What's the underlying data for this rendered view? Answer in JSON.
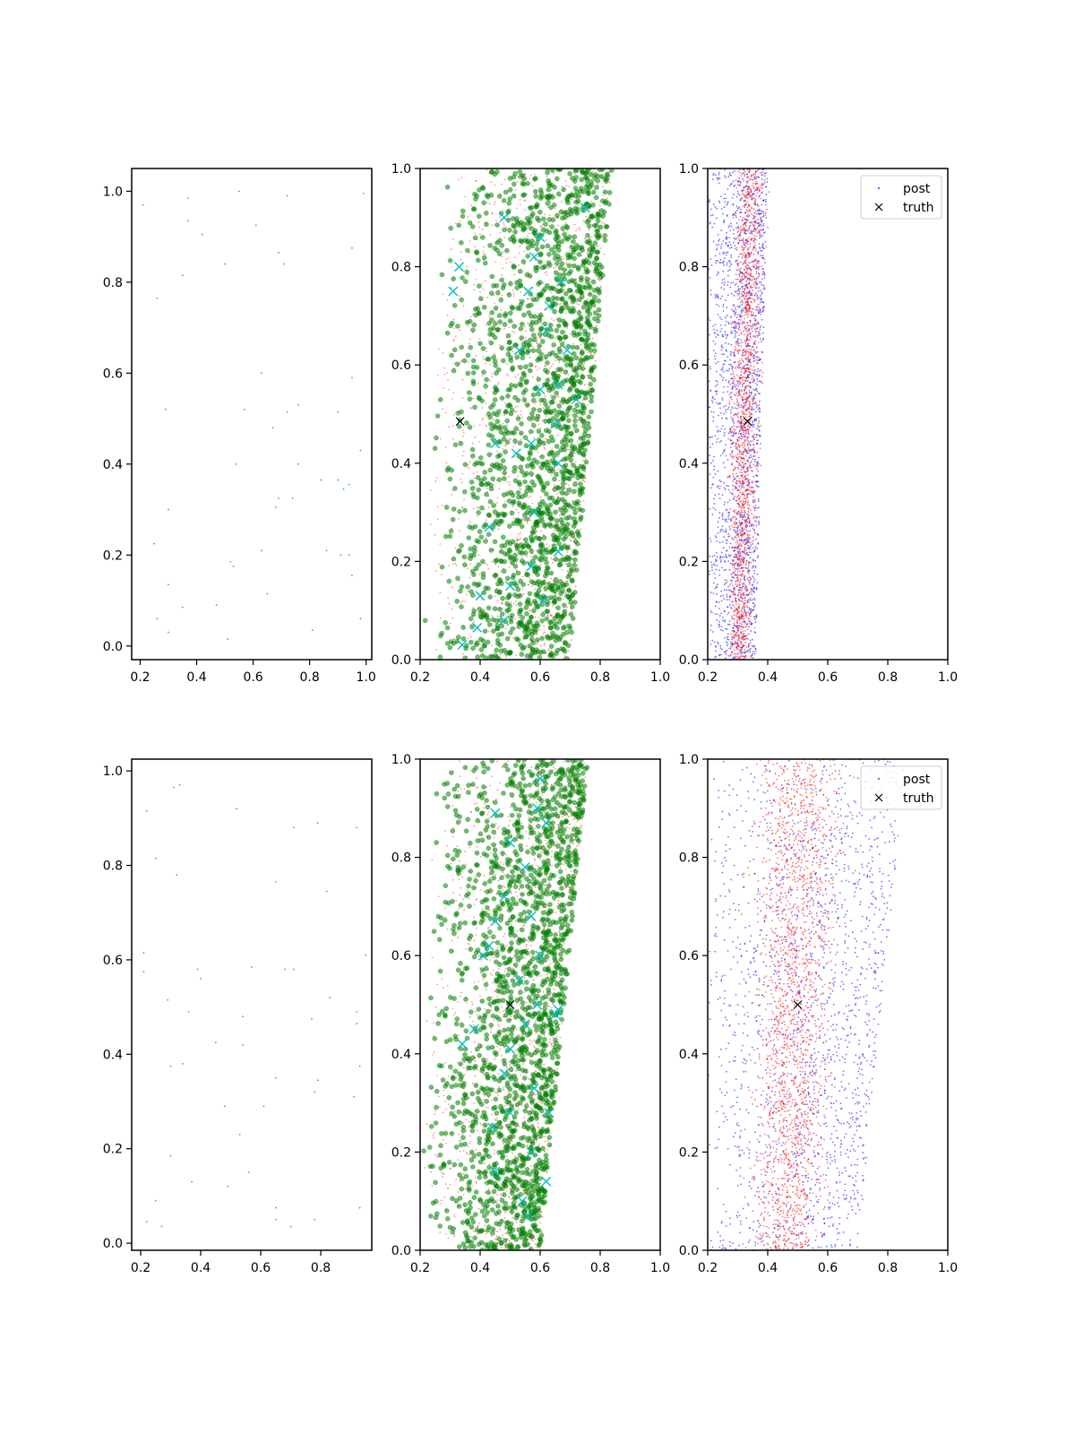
{
  "figure": {
    "rows": 2,
    "cols": 3
  },
  "colors": {
    "sparse": "#20b2aa",
    "green": "#008000",
    "red": "#ff0000",
    "blue": "#0000ff",
    "cyan": "#00bfbf",
    "black": "#000000"
  },
  "legend": {
    "post_label": "post",
    "truth_label": "truth",
    "placement": "upper right"
  },
  "chart_data": [
    {
      "type": "scatter",
      "panel": "row1-col1",
      "xlim": [
        0.17,
        1.02
      ],
      "ylim": [
        -0.03,
        1.05
      ],
      "xticks": [
        0.2,
        0.4,
        0.6,
        0.8,
        1.0
      ],
      "xtick_labels": [
        "0.2",
        "0.4",
        "0.6",
        "0.8",
        "1.0"
      ],
      "yticks": [
        0.0,
        0.2,
        0.4,
        0.6,
        0.8,
        1.0
      ],
      "ytick_labels": [
        "0.0",
        "0.2",
        "0.4",
        "0.6",
        "0.8",
        "1.0"
      ],
      "points": [
        [
          0.21,
          0.97
        ],
        [
          0.37,
          0.985
        ],
        [
          0.55,
          1.0
        ],
        [
          0.72,
          0.99
        ],
        [
          0.99,
          0.995
        ],
        [
          0.37,
          0.935
        ],
        [
          0.42,
          0.905
        ],
        [
          0.61,
          0.925
        ],
        [
          0.95,
          0.875
        ],
        [
          0.69,
          0.865
        ],
        [
          0.35,
          0.815
        ],
        [
          0.5,
          0.84
        ],
        [
          0.71,
          0.84
        ],
        [
          0.26,
          0.765
        ],
        [
          0.63,
          0.6
        ],
        [
          0.95,
          0.59
        ],
        [
          0.29,
          0.52
        ],
        [
          0.57,
          0.52
        ],
        [
          0.72,
          0.515
        ],
        [
          0.76,
          0.53
        ],
        [
          0.9,
          0.515
        ],
        [
          0.67,
          0.48
        ],
        [
          0.98,
          0.43
        ],
        [
          0.54,
          0.4
        ],
        [
          0.76,
          0.4
        ],
        [
          0.84,
          0.365
        ],
        [
          0.9,
          0.365
        ],
        [
          0.92,
          0.345
        ],
        [
          0.94,
          0.355
        ],
        [
          0.69,
          0.325
        ],
        [
          0.74,
          0.325
        ],
        [
          0.68,
          0.305
        ],
        [
          0.3,
          0.3
        ],
        [
          0.25,
          0.225
        ],
        [
          0.63,
          0.21
        ],
        [
          0.86,
          0.21
        ],
        [
          0.91,
          0.2
        ],
        [
          0.94,
          0.2
        ],
        [
          0.52,
          0.185
        ],
        [
          0.53,
          0.175
        ],
        [
          0.3,
          0.135
        ],
        [
          0.95,
          0.155
        ],
        [
          0.65,
          0.115
        ],
        [
          0.35,
          0.085
        ],
        [
          0.47,
          0.09
        ],
        [
          0.26,
          0.06
        ],
        [
          0.98,
          0.06
        ],
        [
          0.3,
          0.03
        ],
        [
          0.81,
          0.035
        ],
        [
          0.51,
          0.015
        ]
      ]
    },
    {
      "type": "scatter",
      "panel": "row1-col2",
      "xlim": [
        0.2,
        1.0
      ],
      "ylim": [
        0.0,
        1.0
      ],
      "xticks": [
        0.2,
        0.4,
        0.6,
        0.8,
        1.0
      ],
      "xtick_labels": [
        "0.2",
        "0.4",
        "0.6",
        "0.8",
        "1.0"
      ],
      "yticks": [
        0.0,
        0.2,
        0.4,
        0.6,
        0.8,
        1.0
      ],
      "ytick_labels": [
        "0.0",
        "0.2",
        "0.4",
        "0.6",
        "0.8",
        "1.0"
      ],
      "cloud": {
        "x_left_at_y0": 0.2,
        "x_left_at_y1": 0.28,
        "x_right_at_y0": 0.7,
        "x_right_at_y1": 0.84,
        "density_peak_offset": 0.75,
        "count_green": 1800,
        "count_red": 1500
      },
      "cyan_x": [
        [
          0.34,
          0.03
        ],
        [
          0.4,
          0.13
        ],
        [
          0.48,
          0.08
        ],
        [
          0.39,
          0.065
        ],
        [
          0.5,
          0.15
        ],
        [
          0.57,
          0.19
        ],
        [
          0.61,
          0.12
        ],
        [
          0.66,
          0.22
        ],
        [
          0.43,
          0.27
        ],
        [
          0.58,
          0.3
        ],
        [
          0.52,
          0.42
        ],
        [
          0.45,
          0.44
        ],
        [
          0.57,
          0.44
        ],
        [
          0.65,
          0.48
        ],
        [
          0.66,
          0.4
        ],
        [
          0.31,
          0.75
        ],
        [
          0.33,
          0.8
        ],
        [
          0.48,
          0.9
        ],
        [
          0.58,
          0.82
        ],
        [
          0.6,
          0.86
        ],
        [
          0.63,
          0.72
        ],
        [
          0.62,
          0.67
        ],
        [
          0.67,
          0.77
        ],
        [
          0.66,
          0.56
        ],
        [
          0.72,
          0.53
        ],
        [
          0.56,
          0.75
        ],
        [
          0.75,
          0.92
        ],
        [
          0.6,
          0.55
        ],
        [
          0.53,
          0.63
        ],
        [
          0.69,
          0.63
        ]
      ],
      "truth": [
        0.333,
        0.485
      ]
    },
    {
      "type": "scatter",
      "panel": "row1-col3",
      "xlim": [
        0.2,
        1.0
      ],
      "ylim": [
        0.0,
        1.0
      ],
      "xticks": [
        0.2,
        0.4,
        0.6,
        0.8,
        1.0
      ],
      "xtick_labels": [
        "0.2",
        "0.4",
        "0.6",
        "0.8",
        "1.0"
      ],
      "yticks": [
        0.0,
        0.2,
        0.4,
        0.6,
        0.8,
        1.0
      ],
      "ytick_labels": [
        "0.0",
        "0.2",
        "0.4",
        "0.6",
        "0.8",
        "1.0"
      ],
      "blue_band": {
        "x_left": 0.2,
        "x_right_at_y0": 0.36,
        "x_right_at_y1": 0.4,
        "count": 1800
      },
      "red_band": {
        "x_left_at_y0": 0.25,
        "x_left_at_y1": 0.27,
        "x_right_at_y0": 0.36,
        "x_right_at_y1": 0.42,
        "count": 1600
      },
      "truth": [
        0.333,
        0.485
      ],
      "legend": true
    },
    {
      "type": "scatter",
      "panel": "row2-col1",
      "xlim": [
        0.17,
        0.97
      ],
      "ylim": [
        -0.015,
        1.025
      ],
      "xticks": [
        0.2,
        0.4,
        0.6,
        0.8
      ],
      "xtick_labels": [
        "0.2",
        "0.4",
        "0.6",
        "0.8"
      ],
      "yticks": [
        0.0,
        0.2,
        0.4,
        0.6,
        0.8,
        1.0
      ],
      "ytick_labels": [
        "0.0",
        "0.2",
        "0.4",
        "0.6",
        "0.8",
        "1.0"
      ],
      "points": [
        [
          0.31,
          0.965
        ],
        [
          0.33,
          0.97
        ],
        [
          0.52,
          0.92
        ],
        [
          0.22,
          0.915
        ],
        [
          0.71,
          0.88
        ],
        [
          0.79,
          0.89
        ],
        [
          0.92,
          0.88
        ],
        [
          0.25,
          0.815
        ],
        [
          0.32,
          0.78
        ],
        [
          0.65,
          0.765
        ],
        [
          0.82,
          0.745
        ],
        [
          0.21,
          0.615
        ],
        [
          0.21,
          0.575
        ],
        [
          0.39,
          0.58
        ],
        [
          0.57,
          0.585
        ],
        [
          0.68,
          0.58
        ],
        [
          0.71,
          0.58
        ],
        [
          0.95,
          0.61
        ],
        [
          0.4,
          0.56
        ],
        [
          0.29,
          0.515
        ],
        [
          0.83,
          0.52
        ],
        [
          0.36,
          0.49
        ],
        [
          0.92,
          0.49
        ],
        [
          0.54,
          0.48
        ],
        [
          0.77,
          0.475
        ],
        [
          0.92,
          0.465
        ],
        [
          0.45,
          0.425
        ],
        [
          0.54,
          0.42
        ],
        [
          0.3,
          0.375
        ],
        [
          0.34,
          0.38
        ],
        [
          0.93,
          0.375
        ],
        [
          0.65,
          0.35
        ],
        [
          0.79,
          0.345
        ],
        [
          0.78,
          0.32
        ],
        [
          0.91,
          0.31
        ],
        [
          0.48,
          0.29
        ],
        [
          0.61,
          0.29
        ],
        [
          0.53,
          0.23
        ],
        [
          0.3,
          0.185
        ],
        [
          0.56,
          0.15
        ],
        [
          0.37,
          0.13
        ],
        [
          0.49,
          0.12
        ],
        [
          0.25,
          0.09
        ],
        [
          0.65,
          0.075
        ],
        [
          0.93,
          0.075
        ],
        [
          0.65,
          0.05
        ],
        [
          0.78,
          0.05
        ],
        [
          0.22,
          0.045
        ],
        [
          0.27,
          0.035
        ],
        [
          0.7,
          0.035
        ]
      ]
    },
    {
      "type": "scatter",
      "panel": "row2-col2",
      "xlim": [
        0.2,
        1.0
      ],
      "ylim": [
        0.0,
        1.0
      ],
      "xticks": [
        0.2,
        0.4,
        0.6,
        0.8,
        1.0
      ],
      "xtick_labels": [
        "0.2",
        "0.4",
        "0.6",
        "0.8",
        "1.0"
      ],
      "yticks": [
        0.0,
        0.2,
        0.4,
        0.6,
        0.8,
        1.0
      ],
      "ytick_labels": [
        "0.0",
        "0.2",
        "0.4",
        "0.6",
        "0.8",
        "1.0"
      ],
      "cloud": {
        "x_left_at_y0": 0.2,
        "x_left_at_y1": 0.24,
        "x_right_at_y0": 0.6,
        "x_right_at_y1": 0.76,
        "density_peak_offset": 0.8,
        "count_green": 1800,
        "count_red": 1500
      },
      "cyan_x": [
        [
          0.45,
          0.16
        ],
        [
          0.54,
          0.1
        ],
        [
          0.56,
          0.07
        ],
        [
          0.57,
          0.2
        ],
        [
          0.63,
          0.28
        ],
        [
          0.48,
          0.36
        ],
        [
          0.5,
          0.41
        ],
        [
          0.34,
          0.42
        ],
        [
          0.38,
          0.45
        ],
        [
          0.55,
          0.46
        ],
        [
          0.65,
          0.48
        ],
        [
          0.66,
          0.49
        ],
        [
          0.59,
          0.5
        ],
        [
          0.43,
          0.62
        ],
        [
          0.41,
          0.6
        ],
        [
          0.45,
          0.67
        ],
        [
          0.48,
          0.72
        ],
        [
          0.55,
          0.78
        ],
        [
          0.5,
          0.83
        ],
        [
          0.45,
          0.89
        ],
        [
          0.59,
          0.9
        ],
        [
          0.6,
          0.96
        ],
        [
          0.62,
          0.87
        ],
        [
          0.57,
          0.68
        ],
        [
          0.53,
          0.55
        ],
        [
          0.58,
          0.33
        ],
        [
          0.44,
          0.25
        ],
        [
          0.6,
          0.6
        ],
        [
          0.62,
          0.14
        ],
        [
          0.5,
          0.28
        ]
      ],
      "truth": [
        0.5,
        0.5
      ]
    },
    {
      "type": "scatter",
      "panel": "row2-col3",
      "xlim": [
        0.2,
        1.0
      ],
      "ylim": [
        0.0,
        1.0
      ],
      "xticks": [
        0.2,
        0.4,
        0.6,
        0.8,
        1.0
      ],
      "xtick_labels": [
        "0.2",
        "0.4",
        "0.6",
        "0.8",
        "1.0"
      ],
      "yticks": [
        0.0,
        0.2,
        0.4,
        0.6,
        0.8,
        1.0
      ],
      "ytick_labels": [
        "0.0",
        "0.2",
        "0.4",
        "0.6",
        "0.8",
        "1.0"
      ],
      "blue_band": {
        "x_left": 0.2,
        "x_right_at_y0": 0.7,
        "x_right_at_y1": 0.86,
        "count": 1700
      },
      "red_band": {
        "x_left_at_y0": 0.3,
        "x_left_at_y1": 0.3,
        "x_right_at_y0": 0.62,
        "x_right_at_y1": 0.72,
        "count": 1900
      },
      "truth": [
        0.5,
        0.5
      ],
      "legend": true
    }
  ]
}
